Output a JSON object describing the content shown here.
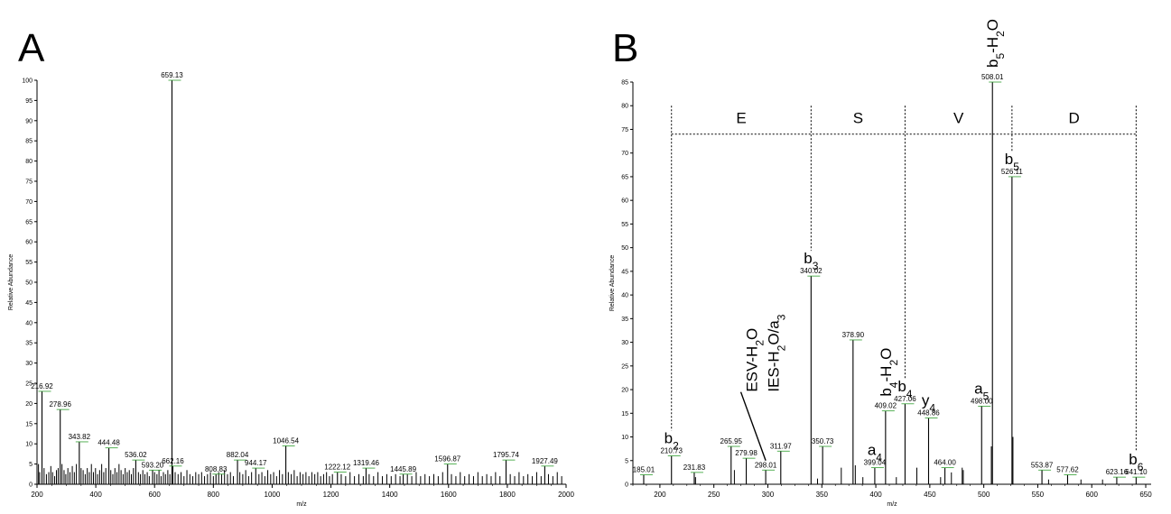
{
  "chart_data": [
    {
      "panel_label": "A",
      "type": "bar",
      "xlabel": "m/z",
      "ylabel": "Relative Abundance",
      "xlim": [
        200,
        2000
      ],
      "ylim": [
        0,
        100
      ],
      "xticks": [
        200,
        400,
        600,
        800,
        1000,
        1200,
        1400,
        1600,
        1800,
        2000
      ],
      "yticks": [
        0,
        5,
        10,
        15,
        20,
        25,
        30,
        35,
        40,
        45,
        50,
        55,
        60,
        65,
        70,
        75,
        80,
        85,
        90,
        95,
        100
      ],
      "labeled_peaks": [
        {
          "mz": 216.92,
          "intensity": 23
        },
        {
          "mz": 278.96,
          "intensity": 18.5
        },
        {
          "mz": 343.82,
          "intensity": 10.5
        },
        {
          "mz": 444.48,
          "intensity": 9
        },
        {
          "mz": 536.02,
          "intensity": 6
        },
        {
          "mz": 593.2,
          "intensity": 3.5
        },
        {
          "mz": 659.13,
          "intensity": 100
        },
        {
          "mz": 662.16,
          "intensity": 4.5
        },
        {
          "mz": 808.83,
          "intensity": 2.5
        },
        {
          "mz": 882.04,
          "intensity": 6
        },
        {
          "mz": 944.17,
          "intensity": 4
        },
        {
          "mz": 1046.54,
          "intensity": 9.5
        },
        {
          "mz": 1222.12,
          "intensity": 3
        },
        {
          "mz": 1319.46,
          "intensity": 4
        },
        {
          "mz": 1445.89,
          "intensity": 2.5
        },
        {
          "mz": 1596.87,
          "intensity": 5
        },
        {
          "mz": 1795.74,
          "intensity": 6
        },
        {
          "mz": 1927.49,
          "intensity": 4.5
        }
      ],
      "noise_peaks": [
        [
          205,
          5
        ],
        [
          209,
          3
        ],
        [
          224,
          4
        ],
        [
          232,
          2.5
        ],
        [
          240,
          3
        ],
        [
          247,
          4.5
        ],
        [
          253,
          3
        ],
        [
          260,
          2
        ],
        [
          266,
          3.5
        ],
        [
          272,
          4
        ],
        [
          285,
          5
        ],
        [
          292,
          3.5
        ],
        [
          298,
          2.5
        ],
        [
          305,
          4
        ],
        [
          312,
          3
        ],
        [
          320,
          4.5
        ],
        [
          327,
          3
        ],
        [
          334,
          5
        ],
        [
          350,
          4
        ],
        [
          357,
          3.5
        ],
        [
          364,
          2.5
        ],
        [
          371,
          4
        ],
        [
          378,
          3
        ],
        [
          385,
          5
        ],
        [
          392,
          3
        ],
        [
          399,
          4
        ],
        [
          406,
          2.5
        ],
        [
          413,
          3.5
        ],
        [
          420,
          5
        ],
        [
          427,
          3
        ],
        [
          434,
          4
        ],
        [
          451,
          3.5
        ],
        [
          458,
          2.5
        ],
        [
          465,
          4
        ],
        [
          472,
          3
        ],
        [
          479,
          5
        ],
        [
          486,
          3.5
        ],
        [
          493,
          2.5
        ],
        [
          500,
          4
        ],
        [
          507,
          3
        ],
        [
          514,
          3.5
        ],
        [
          521,
          2.5
        ],
        [
          528,
          4
        ],
        [
          545,
          3
        ],
        [
          552,
          2.5
        ],
        [
          560,
          3.5
        ],
        [
          567,
          2.5
        ],
        [
          575,
          3
        ],
        [
          582,
          2
        ],
        [
          600,
          3
        ],
        [
          608,
          2.5
        ],
        [
          615,
          3.5
        ],
        [
          622,
          2
        ],
        [
          630,
          3
        ],
        [
          637,
          2.5
        ],
        [
          645,
          3.5
        ],
        [
          652,
          2.5
        ],
        [
          670,
          3
        ],
        [
          680,
          2.5
        ],
        [
          690,
          3
        ],
        [
          700,
          2
        ],
        [
          710,
          3.5
        ],
        [
          720,
          2.5
        ],
        [
          730,
          2
        ],
        [
          740,
          3
        ],
        [
          750,
          2.5
        ],
        [
          760,
          3
        ],
        [
          770,
          2
        ],
        [
          780,
          2.5
        ],
        [
          790,
          3
        ],
        [
          800,
          2
        ],
        [
          818,
          3
        ],
        [
          828,
          2.5
        ],
        [
          838,
          3.5
        ],
        [
          848,
          2.5
        ],
        [
          858,
          3
        ],
        [
          868,
          2
        ],
        [
          890,
          3
        ],
        [
          900,
          2.5
        ],
        [
          910,
          3.5
        ],
        [
          920,
          2
        ],
        [
          930,
          3
        ],
        [
          955,
          2.5
        ],
        [
          965,
          3
        ],
        [
          975,
          2
        ],
        [
          985,
          3.5
        ],
        [
          995,
          2.5
        ],
        [
          1005,
          3
        ],
        [
          1015,
          2
        ],
        [
          1025,
          3.5
        ],
        [
          1035,
          2.5
        ],
        [
          1055,
          3
        ],
        [
          1065,
          2.5
        ],
        [
          1075,
          3.5
        ],
        [
          1085,
          2
        ],
        [
          1095,
          3
        ],
        [
          1105,
          2.5
        ],
        [
          1115,
          3
        ],
        [
          1125,
          2
        ],
        [
          1135,
          3
        ],
        [
          1145,
          2.5
        ],
        [
          1155,
          3
        ],
        [
          1165,
          2
        ],
        [
          1175,
          2.5
        ],
        [
          1185,
          3
        ],
        [
          1195,
          2
        ],
        [
          1205,
          2.5
        ],
        [
          1235,
          2.5
        ],
        [
          1250,
          2
        ],
        [
          1265,
          3
        ],
        [
          1280,
          2
        ],
        [
          1295,
          2.5
        ],
        [
          1310,
          2
        ],
        [
          1330,
          2.5
        ],
        [
          1345,
          2
        ],
        [
          1360,
          3
        ],
        [
          1375,
          2
        ],
        [
          1390,
          2.5
        ],
        [
          1405,
          2
        ],
        [
          1420,
          2.5
        ],
        [
          1435,
          2
        ],
        [
          1460,
          2.5
        ],
        [
          1475,
          2
        ],
        [
          1490,
          3
        ],
        [
          1505,
          2
        ],
        [
          1520,
          2.5
        ],
        [
          1535,
          2
        ],
        [
          1550,
          2.5
        ],
        [
          1565,
          2
        ],
        [
          1580,
          3
        ],
        [
          1610,
          2.5
        ],
        [
          1625,
          2
        ],
        [
          1640,
          3
        ],
        [
          1655,
          2
        ],
        [
          1670,
          2.5
        ],
        [
          1685,
          2
        ],
        [
          1700,
          3
        ],
        [
          1715,
          2
        ],
        [
          1730,
          2.5
        ],
        [
          1745,
          2
        ],
        [
          1760,
          3
        ],
        [
          1775,
          2
        ],
        [
          1810,
          2.5
        ],
        [
          1825,
          2
        ],
        [
          1840,
          3
        ],
        [
          1855,
          2
        ],
        [
          1870,
          2.5
        ],
        [
          1885,
          2
        ],
        [
          1900,
          3
        ],
        [
          1915,
          2
        ],
        [
          1940,
          2.5
        ],
        [
          1955,
          2
        ],
        [
          1970,
          3
        ],
        [
          1985,
          2
        ]
      ]
    },
    {
      "panel_label": "B",
      "type": "bar",
      "xlabel": "m/z",
      "ylabel": "Relative Abundance",
      "xlim": [
        175,
        655
      ],
      "ylim": [
        0,
        85
      ],
      "xticks": [
        200,
        250,
        300,
        350,
        400,
        450,
        500,
        550,
        600,
        650
      ],
      "yticks": [
        0,
        5,
        10,
        15,
        20,
        25,
        30,
        35,
        40,
        45,
        50,
        55,
        60,
        65,
        70,
        75,
        80,
        85
      ],
      "labeled_peaks": [
        {
          "mz": 185.01,
          "intensity": 2
        },
        {
          "mz": 210.73,
          "intensity": 6
        },
        {
          "mz": 231.83,
          "intensity": 2.5
        },
        {
          "mz": 265.95,
          "intensity": 8
        },
        {
          "mz": 279.98,
          "intensity": 5.5
        },
        {
          "mz": 298.01,
          "intensity": 3
        },
        {
          "mz": 311.97,
          "intensity": 7
        },
        {
          "mz": 340.02,
          "intensity": 44
        },
        {
          "mz": 350.73,
          "intensity": 8
        },
        {
          "mz": 378.9,
          "intensity": 30.5
        },
        {
          "mz": 399.04,
          "intensity": 3.5
        },
        {
          "mz": 409.02,
          "intensity": 15.5
        },
        {
          "mz": 427.06,
          "intensity": 17
        },
        {
          "mz": 448.86,
          "intensity": 14
        },
        {
          "mz": 464.0,
          "intensity": 3.5
        },
        {
          "mz": 498.0,
          "intensity": 16.5
        },
        {
          "mz": 508.01,
          "intensity": 85
        },
        {
          "mz": 526.11,
          "intensity": 65
        },
        {
          "mz": 553.87,
          "intensity": 3
        },
        {
          "mz": 577.62,
          "intensity": 2
        },
        {
          "mz": 623.16,
          "intensity": 1.5
        },
        {
          "mz": 641.1,
          "intensity": 1.5
        }
      ],
      "unlabeled_peaks": [
        [
          233,
          1.5
        ],
        [
          269,
          3
        ],
        [
          346,
          1.2
        ],
        [
          368,
          3.5
        ],
        [
          381,
          4
        ],
        [
          388,
          1.5
        ],
        [
          419,
          1.5
        ],
        [
          438,
          3.5
        ],
        [
          460,
          1.5
        ],
        [
          470,
          2.5
        ],
        [
          480,
          3.5
        ],
        [
          481,
          3
        ],
        [
          507,
          8
        ],
        [
          527,
          10
        ],
        [
          560,
          1
        ],
        [
          590,
          1
        ],
        [
          610,
          1
        ]
      ],
      "ion_annotations": [
        {
          "label": "b",
          "sub": "2",
          "suffix": "",
          "mz": 210.73,
          "orient": "horizontal"
        },
        {
          "label": "ESV-H",
          "sub": "2",
          "suffix": "O",
          "mz": 285,
          "orient": "vertical"
        },
        {
          "label": "IES-H",
          "sub": "2",
          "suffix": "O/a",
          "sub2": "3",
          "mz": 305,
          "orient": "vertical"
        },
        {
          "label": "b",
          "sub": "3",
          "suffix": "",
          "mz": 340.02,
          "orient": "horizontal"
        },
        {
          "label": "a",
          "sub": "4",
          "suffix": "",
          "mz": 399.04,
          "orient": "horizontal"
        },
        {
          "label": "b",
          "sub": "4",
          "suffix": "-H",
          "sub2": "2",
          "suffix2": "O",
          "mz": 409.02,
          "orient": "vertical"
        },
        {
          "label": "b",
          "sub": "4",
          "suffix": "",
          "mz": 427.06,
          "orient": "horizontal"
        },
        {
          "label": "y",
          "sub": "4",
          "suffix": "",
          "mz": 448.86,
          "orient": "horizontal"
        },
        {
          "label": "a",
          "sub": "5",
          "suffix": "",
          "mz": 498.0,
          "orient": "horizontal"
        },
        {
          "label": "b",
          "sub": "5",
          "suffix": "-H",
          "sub2": "2",
          "suffix2": "O",
          "mz": 508.01,
          "orient": "vertical"
        },
        {
          "label": "b",
          "sub": "5",
          "suffix": "",
          "mz": 526.11,
          "orient": "horizontal"
        },
        {
          "label": "b",
          "sub": "6",
          "suffix": "",
          "mz": 641.1,
          "orient": "horizontal"
        }
      ],
      "sequence": {
        "residues": [
          "E",
          "S",
          "V",
          "D"
        ],
        "boundaries_mz": [
          210.73,
          340.02,
          427.06,
          526.11,
          641.1
        ],
        "line_level": 74
      }
    }
  ],
  "colors": {
    "ink": "#000000",
    "peak_tick": "#2e9e2e"
  }
}
